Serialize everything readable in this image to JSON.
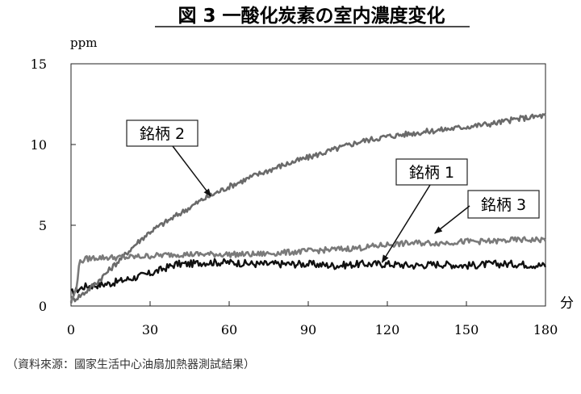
{
  "chart_data": {
    "type": "line",
    "title": "図 3 一酸化炭素の室内濃度変化",
    "xlabel": "分",
    "ylabel": "ppm",
    "xlim": [
      0,
      180
    ],
    "ylim": [
      0,
      15
    ],
    "x_ticks": [
      0,
      30,
      60,
      90,
      120,
      150,
      180
    ],
    "y_ticks": [
      0,
      5,
      10,
      15
    ],
    "grid": false,
    "series": [
      {
        "name": "銘柄 1",
        "color": "#111111",
        "x": [
          0,
          5,
          10,
          15,
          20,
          25,
          30,
          35,
          40,
          45,
          50,
          60,
          70,
          80,
          90,
          100,
          110,
          120,
          130,
          140,
          150,
          160,
          170,
          180
        ],
        "y": [
          0.8,
          1.2,
          1.3,
          1.4,
          1.6,
          1.8,
          2.0,
          2.3,
          2.6,
          2.6,
          2.7,
          2.7,
          2.6,
          2.6,
          2.6,
          2.5,
          2.6,
          2.6,
          2.5,
          2.6,
          2.5,
          2.6,
          2.6,
          2.5
        ]
      },
      {
        "name": "銘柄 2",
        "color": "#6a6a6a",
        "x": [
          0,
          5,
          10,
          15,
          20,
          25,
          30,
          40,
          50,
          60,
          70,
          80,
          90,
          100,
          110,
          120,
          130,
          140,
          150,
          160,
          170,
          180
        ],
        "y": [
          0.3,
          0.8,
          1.5,
          2.3,
          3.1,
          3.9,
          4.6,
          5.6,
          6.6,
          7.4,
          8.1,
          8.7,
          9.2,
          9.7,
          10.2,
          10.5,
          10.7,
          10.9,
          11.1,
          11.3,
          11.6,
          11.8
        ]
      },
      {
        "name": "銘柄 3",
        "color": "#7a7a7a",
        "x": [
          0,
          2,
          3,
          5,
          10,
          20,
          30,
          40,
          50,
          60,
          70,
          80,
          90,
          100,
          110,
          120,
          130,
          140,
          150,
          160,
          170,
          180
        ],
        "y": [
          0.3,
          1.0,
          2.6,
          2.9,
          3.0,
          3.0,
          3.1,
          3.2,
          3.2,
          3.2,
          3.2,
          3.3,
          3.4,
          3.5,
          3.6,
          3.8,
          3.9,
          3.9,
          4.0,
          4.0,
          4.1,
          4.1
        ]
      }
    ],
    "annotations": [
      {
        "text": "銘柄 2",
        "series": "銘柄 2",
        "point_to": [
          53,
          6.8
        ]
      },
      {
        "text": "銘柄 1",
        "series": "銘柄 1",
        "point_to": [
          118,
          2.7
        ]
      },
      {
        "text": "銘柄 3",
        "series": "銘柄 3",
        "point_to": [
          138,
          4.5
        ]
      }
    ]
  },
  "source_note": "（資料來源：國家生活中心油扇加熱器測試結果）"
}
